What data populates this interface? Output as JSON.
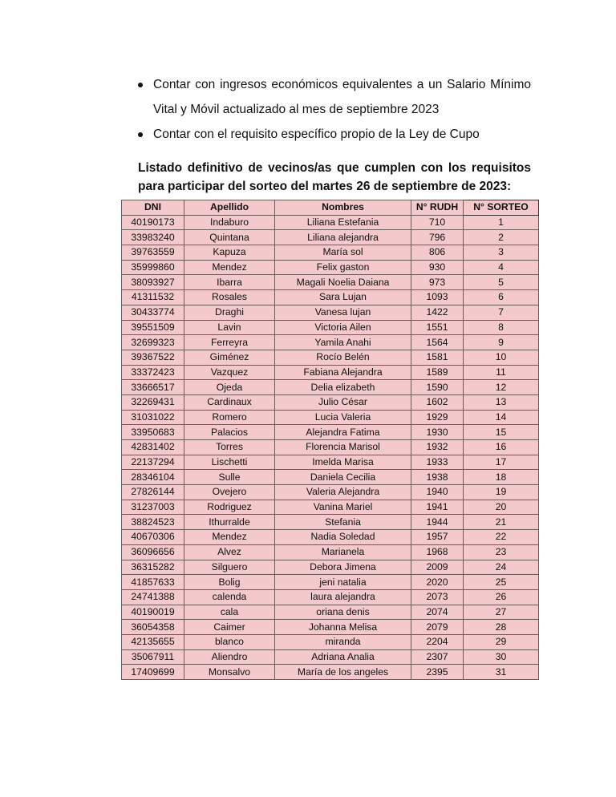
{
  "bullets": [
    "Contar con ingresos económicos equivalentes a un Salario Mínimo Vital y Móvil actualizado al mes de septiembre 2023",
    "Contar con el requisito específico propio de la Ley de Cupo"
  ],
  "heading": "Listado definitivo de vecinos/as que cumplen con los requisitos para participar del sorteo del martes 26 de septiembre de 2023:",
  "colors": {
    "cell_background": "#f3c9cb"
  },
  "table": {
    "headers": [
      "DNI",
      "Apellido",
      "Nombres",
      "N° RUDH",
      "N° SORTEO"
    ],
    "rows": [
      [
        "40190173",
        "Indaburo",
        "Liliana Estefania",
        "710",
        "1"
      ],
      [
        "33983240",
        "Quintana",
        "Liliana alejandra",
        "796",
        "2"
      ],
      [
        "39763559",
        "Kapuza",
        "María sol",
        "806",
        "3"
      ],
      [
        "35999860",
        "Mendez",
        "Felix gaston",
        "930",
        "4"
      ],
      [
        "38093927",
        "Ibarra",
        "Magali Noelia Daiana",
        "973",
        "5"
      ],
      [
        "41311532",
        "Rosales",
        "Sara Lujan",
        "1093",
        "6"
      ],
      [
        "30433774",
        "Draghi",
        "Vanesa lujan",
        "1422",
        "7"
      ],
      [
        "39551509",
        "Lavin",
        "Victoria Ailen",
        "1551",
        "8"
      ],
      [
        "32699323",
        "Ferreyra",
        "Yamila Anahi",
        "1564",
        "9"
      ],
      [
        "39367522",
        "Giménez",
        "Rocío Belén",
        "1581",
        "10"
      ],
      [
        "33372423",
        "Vazquez",
        "Fabiana Alejandra",
        "1589",
        "11"
      ],
      [
        "33666517",
        "Ojeda",
        "Delia elizabeth",
        "1590",
        "12"
      ],
      [
        "32269431",
        "Cardinaux",
        "Julio César",
        "1602",
        "13"
      ],
      [
        "31031022",
        "Romero",
        "Lucia Valeria",
        "1929",
        "14"
      ],
      [
        "33950683",
        "Palacios",
        "Alejandra Fatima",
        "1930",
        "15"
      ],
      [
        "42831402",
        "Torres",
        "Florencia Marisol",
        "1932",
        "16"
      ],
      [
        "22137294",
        "Lischetti",
        "Imelda Marisa",
        "1933",
        "17"
      ],
      [
        "28346104",
        "Sulle",
        "Daniela Cecilia",
        "1938",
        "18"
      ],
      [
        "27826144",
        "Ovejero",
        "Valeria Alejandra",
        "1940",
        "19"
      ],
      [
        "31237003",
        "Rodriguez",
        "Vanina Mariel",
        "1941",
        "20"
      ],
      [
        "38824523",
        "Ithurralde",
        "Stefania",
        "1944",
        "21"
      ],
      [
        "40670306",
        "Mendez",
        "Nadia Soledad",
        "1957",
        "22"
      ],
      [
        "36096656",
        "Alvez",
        "Marianela",
        "1968",
        "23"
      ],
      [
        "36315282",
        "Silguero",
        "Debora Jimena",
        "2009",
        "24"
      ],
      [
        "41857633",
        "Bolig",
        "jeni natalia",
        "2020",
        "25"
      ],
      [
        "24741388",
        "calenda",
        "laura alejandra",
        "2073",
        "26"
      ],
      [
        "40190019",
        "cala",
        "oriana denis",
        "2074",
        "27"
      ],
      [
        "36054358",
        "Caimer",
        "Johanna Melisa",
        "2079",
        "28"
      ],
      [
        "42135655",
        "blanco",
        "miranda",
        "2204",
        "29"
      ],
      [
        "35067911",
        "Aliendro",
        "Adriana Analia",
        "2307",
        "30"
      ],
      [
        "17409699",
        "Monsalvo",
        "María de los angeles",
        "2395",
        "31"
      ]
    ]
  }
}
